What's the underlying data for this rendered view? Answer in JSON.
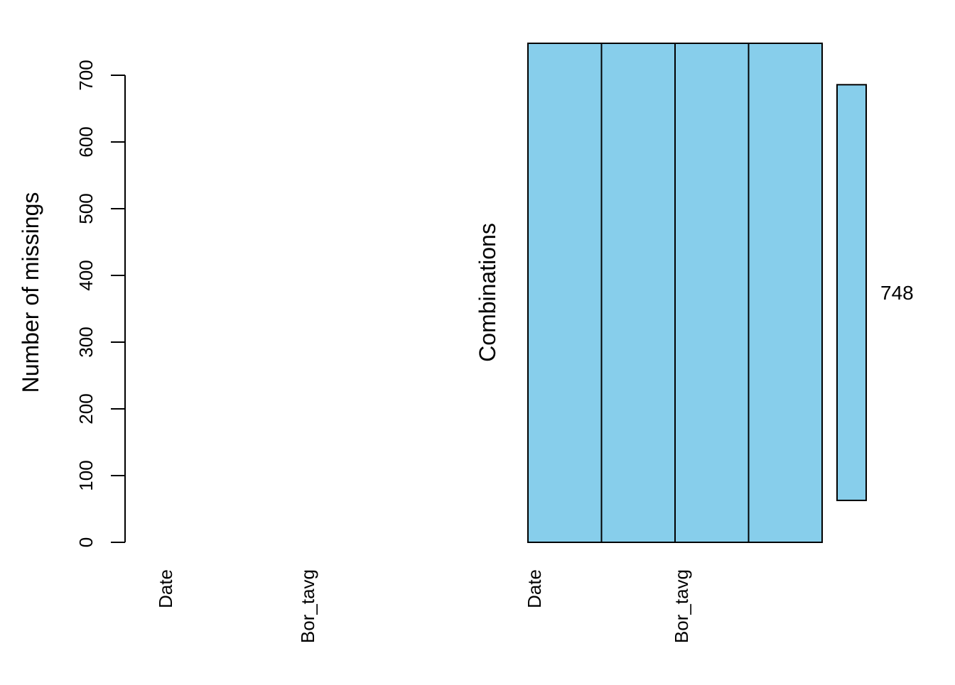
{
  "chart_data": [
    {
      "type": "bar",
      "title": "",
      "xlabel": "",
      "ylabel": "Number of missings",
      "ylim": [
        0,
        700
      ],
      "y_ticks": [
        0,
        100,
        200,
        300,
        400,
        500,
        600,
        700
      ],
      "categories": [
        "Date",
        "",
        "Bor_tavg",
        ""
      ],
      "values": [
        0,
        0,
        0,
        0
      ],
      "grid": false,
      "bar_color": "#000000"
    },
    {
      "type": "heatmap",
      "title": "",
      "xlabel": "",
      "ylabel": "Combinations",
      "categories": [
        "Date",
        "",
        "Bor_tavg",
        ""
      ],
      "combinations": [
        {
          "pattern": [
            0,
            0,
            0,
            0
          ],
          "count": 748,
          "count_label": "748"
        }
      ],
      "observed_color": "#87CEEB",
      "missing_color": "#FF0000"
    }
  ]
}
